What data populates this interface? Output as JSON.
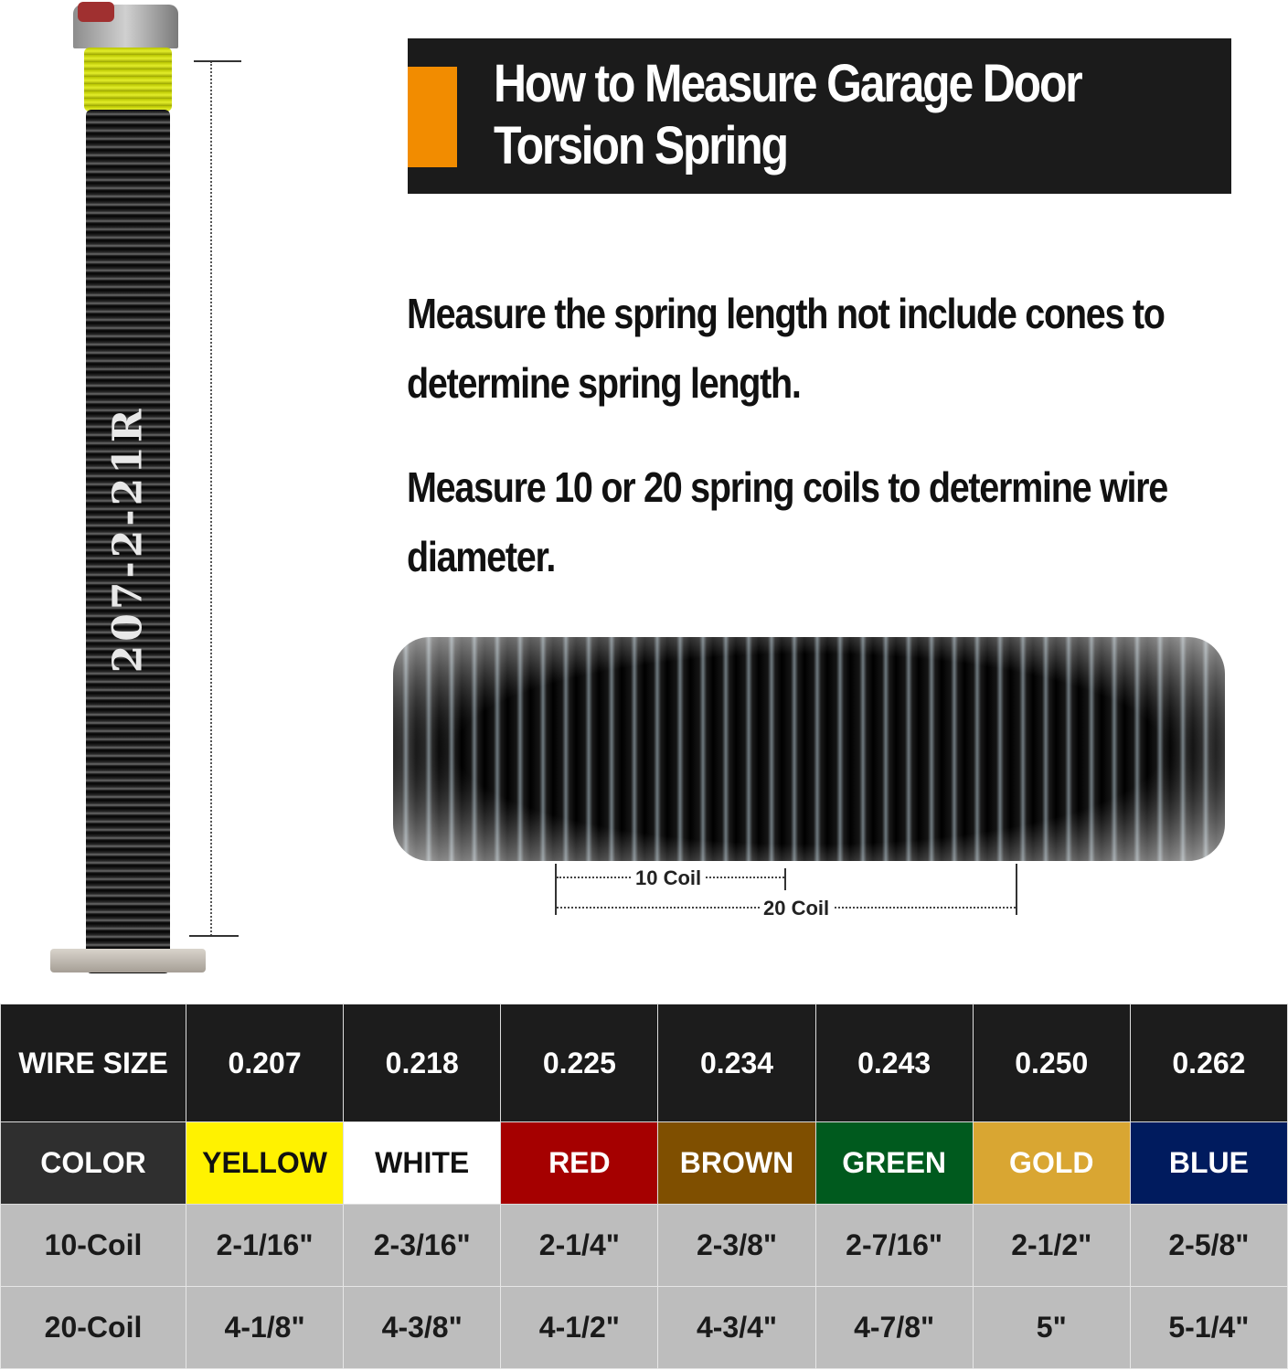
{
  "title": "How to Measure Garage Door Torsion Spring",
  "title_lines": [
    "How to Measure Garage Door",
    "Torsion Spring"
  ],
  "spring_code": "207-2-21R",
  "paragraphs": [
    "Measure the spring length not include cones to determine spring length.",
    "Measure 10 or 20 spring coils to determine wire diameter."
  ],
  "coil_labels": {
    "ten": "10 Coil",
    "twenty": "20 Coil"
  },
  "colors": {
    "accent": "#f28c00",
    "header_bg": "#1c1c1c"
  },
  "table": {
    "row_labels": [
      "WIRE SIZE",
      "COLOR",
      "10-Coil",
      "20-Coil"
    ],
    "wire_sizes": [
      "0.207",
      "0.218",
      "0.225",
      "0.234",
      "0.243",
      "0.250",
      "0.262"
    ],
    "colors": [
      {
        "name": "YELLOW",
        "bg": "#fff200",
        "fg": "#111"
      },
      {
        "name": "WHITE",
        "bg": "#ffffff",
        "fg": "#111"
      },
      {
        "name": "RED",
        "bg": "#a50000",
        "fg": "#fff"
      },
      {
        "name": "BROWN",
        "bg": "#7f4f00",
        "fg": "#fff"
      },
      {
        "name": "GREEN",
        "bg": "#005a1e",
        "fg": "#fff"
      },
      {
        "name": "GOLD",
        "bg": "#d9a632",
        "fg": "#fff"
      },
      {
        "name": "BLUE",
        "bg": "#001b5e",
        "fg": "#fff"
      }
    ],
    "coil10": [
      "2-1/16\"",
      "2-3/16\"",
      "2-1/4\"",
      "2-3/8\"",
      "2-7/16\"",
      "2-1/2\"",
      "2-5/8\""
    ],
    "coil20": [
      "4-1/8\"",
      "4-3/8\"",
      "4-1/2\"",
      "4-3/4\"",
      "4-7/8\"",
      "5\"",
      "5-1/4\""
    ]
  }
}
